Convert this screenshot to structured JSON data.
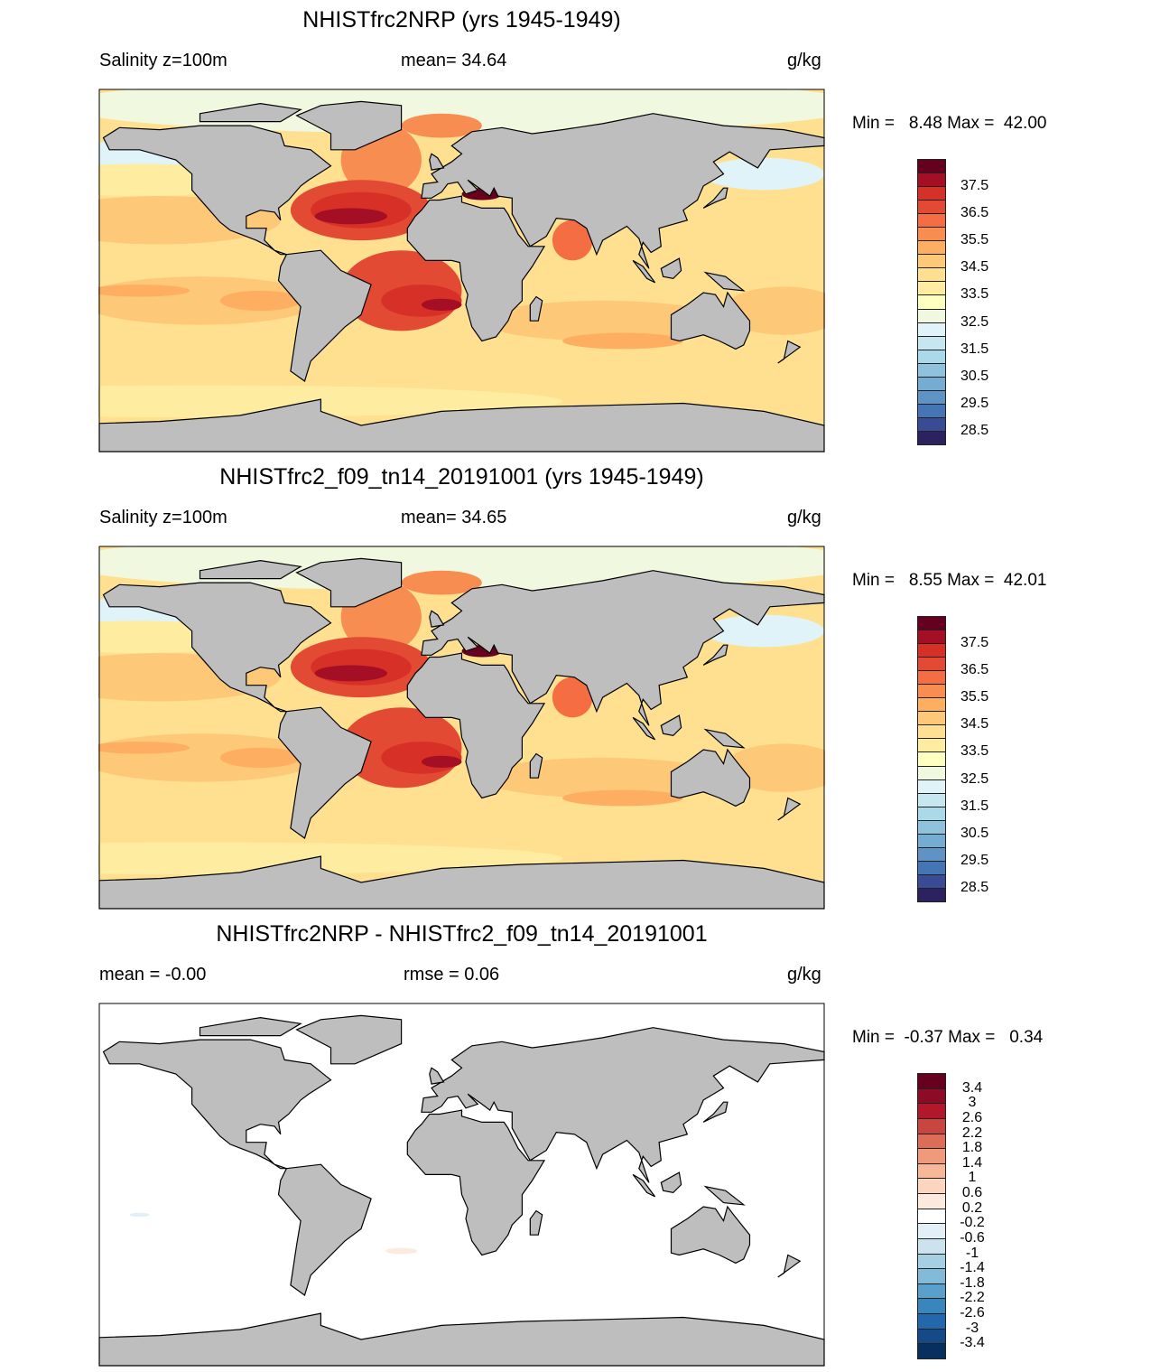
{
  "chart_data": [
    {
      "type": "heatmap",
      "title": "NHISTfrc2NRP (yrs 1945-1949)",
      "left_label": "Salinity z=100m",
      "center_label": "mean=  34.64",
      "units": "g/kg",
      "minmax": "Min =   8.48 Max =  42.00",
      "colorbar": {
        "labels": [
          "37.5",
          "36.5",
          "35.5",
          "34.5",
          "33.5",
          "32.5",
          "31.5",
          "30.5",
          "29.5",
          "28.5"
        ],
        "label_mode": "alternate",
        "colors": [
          "#67001f",
          "#a50f25",
          "#d73027",
          "#e34a33",
          "#f46d43",
          "#f88d52",
          "#fdae61",
          "#fdc878",
          "#fee090",
          "#feeda0",
          "#ffffbf",
          "#f0f9e0",
          "#e0f3f8",
          "#c6e6f0",
          "#abd9e9",
          "#8fc3dd",
          "#74add1",
          "#5f93c6",
          "#4575b4",
          "#384b94",
          "#2c2260"
        ]
      }
    },
    {
      "type": "heatmap",
      "title": "NHISTfrc2_f09_tn14_20191001 (yrs 1945-1949)",
      "left_label": "Salinity z=100m",
      "center_label": "mean=  34.65",
      "units": "g/kg",
      "minmax": "Min =   8.55 Max =  42.01",
      "colorbar": {
        "labels": [
          "37.5",
          "36.5",
          "35.5",
          "34.5",
          "33.5",
          "32.5",
          "31.5",
          "30.5",
          "29.5",
          "28.5"
        ],
        "label_mode": "alternate",
        "colors": [
          "#67001f",
          "#a50f25",
          "#d73027",
          "#e34a33",
          "#f46d43",
          "#f88d52",
          "#fdae61",
          "#fdc878",
          "#fee090",
          "#feeda0",
          "#ffffbf",
          "#f0f9e0",
          "#e0f3f8",
          "#c6e6f0",
          "#abd9e9",
          "#8fc3dd",
          "#74add1",
          "#5f93c6",
          "#4575b4",
          "#384b94",
          "#2c2260"
        ]
      }
    },
    {
      "type": "heatmap",
      "title": "NHISTfrc2NRP - NHISTfrc2_f09_tn14_20191001",
      "left_label": "mean =  -0.00",
      "center_label": "rmse =    0.06",
      "units": "g/kg",
      "minmax": "Min =  -0.37 Max =   0.34",
      "colorbar": {
        "labels": [
          "3.4",
          "3",
          "2.6",
          "2.2",
          "1.8",
          "1.4",
          "1",
          "0.6",
          "0.2",
          "-0.2",
          "-0.6",
          "-1",
          "-1.4",
          "-1.8",
          "-2.2",
          "-2.6",
          "-3",
          "-3.4"
        ],
        "label_mode": "every",
        "colors": [
          "#67001f",
          "#8e0b25",
          "#b2182b",
          "#c9453f",
          "#dc6e57",
          "#ef9a7a",
          "#f7b799",
          "#fcd5bf",
          "#fdeade",
          "#ffffff",
          "#e3eff6",
          "#cce3ef",
          "#a6cfe4",
          "#82bad9",
          "#5aa0cd",
          "#3a85bc",
          "#2367ac",
          "#154a89",
          "#08305e"
        ]
      }
    }
  ],
  "colors": {
    "land": "#bebebe",
    "missing": "#bebebe"
  }
}
